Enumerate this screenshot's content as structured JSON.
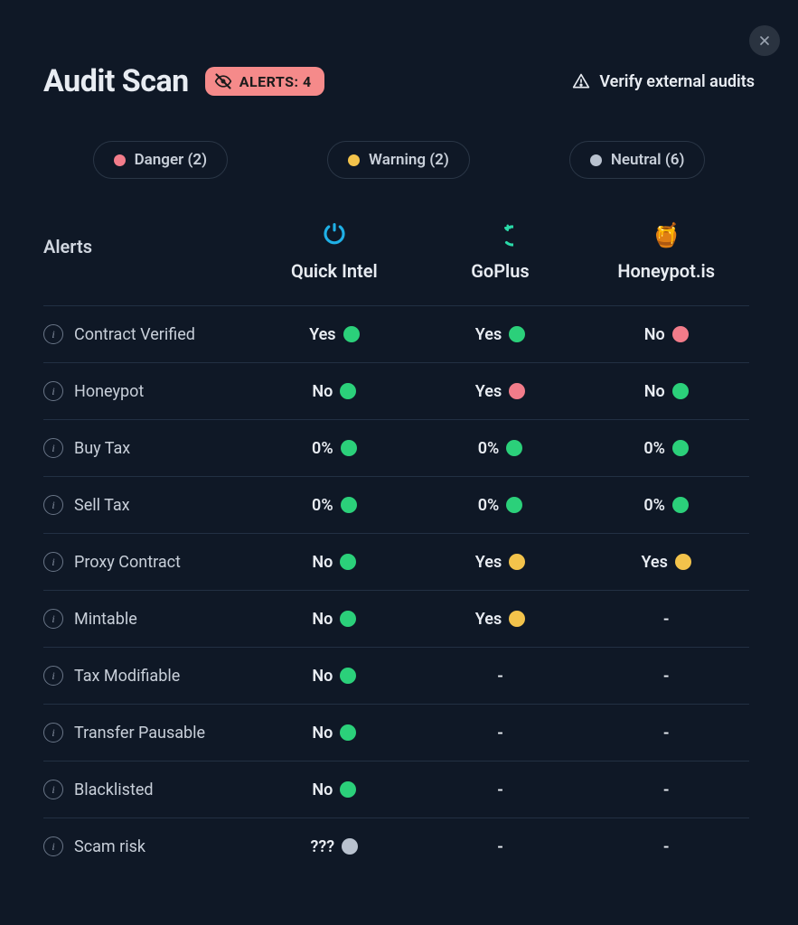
{
  "colors": {
    "green": "#2bd07a",
    "red": "#f27c8a",
    "yellow": "#f3c34b",
    "gray": "#b9c2cf",
    "badge_bg": "#f58a8a",
    "background": "#0f1826",
    "border": "#223043"
  },
  "header": {
    "title": "Audit Scan",
    "alerts_badge": "ALERTS: 4",
    "verify_label": "Verify external audits"
  },
  "legend": [
    {
      "label": "Danger (2)",
      "color_key": "red"
    },
    {
      "label": "Warning (2)",
      "color_key": "yellow"
    },
    {
      "label": "Neutral (6)",
      "color_key": "gray"
    }
  ],
  "table": {
    "alerts_header": "Alerts",
    "providers": [
      {
        "id": "quickintel",
        "label": "Quick Intel",
        "icon": "quickintel"
      },
      {
        "id": "goplus",
        "label": "GoPlus",
        "icon": "goplus"
      },
      {
        "id": "honeypot",
        "label": "Honeypot.is",
        "icon": "honeypot"
      }
    ],
    "rows": [
      {
        "label": "Contract Verified",
        "cells": [
          {
            "text": "Yes",
            "color_key": "green"
          },
          {
            "text": "Yes",
            "color_key": "green"
          },
          {
            "text": "No",
            "color_key": "red"
          }
        ]
      },
      {
        "label": "Honeypot",
        "cells": [
          {
            "text": "No",
            "color_key": "green"
          },
          {
            "text": "Yes",
            "color_key": "red"
          },
          {
            "text": "No",
            "color_key": "green"
          }
        ]
      },
      {
        "label": "Buy Tax",
        "cells": [
          {
            "text": "0%",
            "color_key": "green"
          },
          {
            "text": "0%",
            "color_key": "green"
          },
          {
            "text": "0%",
            "color_key": "green"
          }
        ]
      },
      {
        "label": "Sell Tax",
        "cells": [
          {
            "text": "0%",
            "color_key": "green"
          },
          {
            "text": "0%",
            "color_key": "green"
          },
          {
            "text": "0%",
            "color_key": "green"
          }
        ]
      },
      {
        "label": "Proxy Contract",
        "cells": [
          {
            "text": "No",
            "color_key": "green"
          },
          {
            "text": "Yes",
            "color_key": "yellow"
          },
          {
            "text": "Yes",
            "color_key": "yellow"
          }
        ]
      },
      {
        "label": "Mintable",
        "cells": [
          {
            "text": "No",
            "color_key": "green"
          },
          {
            "text": "Yes",
            "color_key": "yellow"
          },
          {
            "text": "-",
            "color_key": null
          }
        ]
      },
      {
        "label": "Tax Modifiable",
        "cells": [
          {
            "text": "No",
            "color_key": "green"
          },
          {
            "text": "-",
            "color_key": null
          },
          {
            "text": "-",
            "color_key": null
          }
        ]
      },
      {
        "label": "Transfer Pausable",
        "cells": [
          {
            "text": "No",
            "color_key": "green"
          },
          {
            "text": "-",
            "color_key": null
          },
          {
            "text": "-",
            "color_key": null
          }
        ]
      },
      {
        "label": "Blacklisted",
        "cells": [
          {
            "text": "No",
            "color_key": "green"
          },
          {
            "text": "-",
            "color_key": null
          },
          {
            "text": "-",
            "color_key": null
          }
        ]
      },
      {
        "label": "Scam risk",
        "cells": [
          {
            "text": "???",
            "color_key": "gray"
          },
          {
            "text": "-",
            "color_key": null
          },
          {
            "text": "-",
            "color_key": null
          }
        ]
      }
    ]
  }
}
